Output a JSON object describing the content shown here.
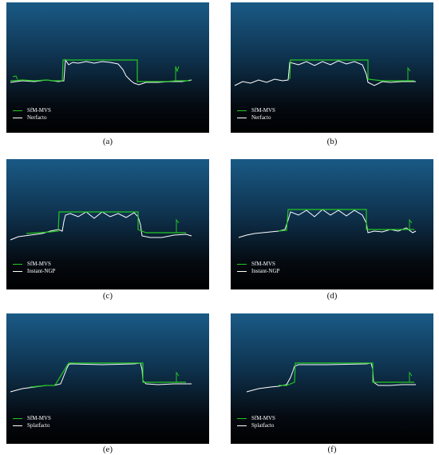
{
  "panels": [
    {
      "id": "a",
      "caption": "(a)",
      "legend": [
        {
          "label": "SfM-MVS",
          "color": "#22c722"
        },
        {
          "label": "Nerfacto",
          "color": "#ffffff"
        }
      ]
    },
    {
      "id": "b",
      "caption": "(b)",
      "legend": [
        {
          "label": "SfM-MVS",
          "color": "#22c722"
        },
        {
          "label": "Nerfacto",
          "color": "#ffffff"
        }
      ]
    },
    {
      "id": "c",
      "caption": "(c)",
      "legend": [
        {
          "label": "SfM-MVS",
          "color": "#22c722"
        },
        {
          "label": "Instant-NGP",
          "color": "#ffffff"
        }
      ]
    },
    {
      "id": "d",
      "caption": "(d)",
      "legend": [
        {
          "label": "SfM-MVS",
          "color": "#22c722"
        },
        {
          "label": "Instant-NGP",
          "color": "#ffffff"
        }
      ]
    },
    {
      "id": "e",
      "caption": "(e)",
      "legend": [
        {
          "label": "SfM-MVS",
          "color": "#22c722"
        },
        {
          "label": "Splatfacto",
          "color": "#ffffff"
        }
      ]
    },
    {
      "id": "f",
      "caption": "(f)",
      "legend": [
        {
          "label": "SfM-MVS",
          "color": "#22c722"
        },
        {
          "label": "Splatfacto",
          "color": "#ffffff"
        }
      ]
    }
  ]
}
